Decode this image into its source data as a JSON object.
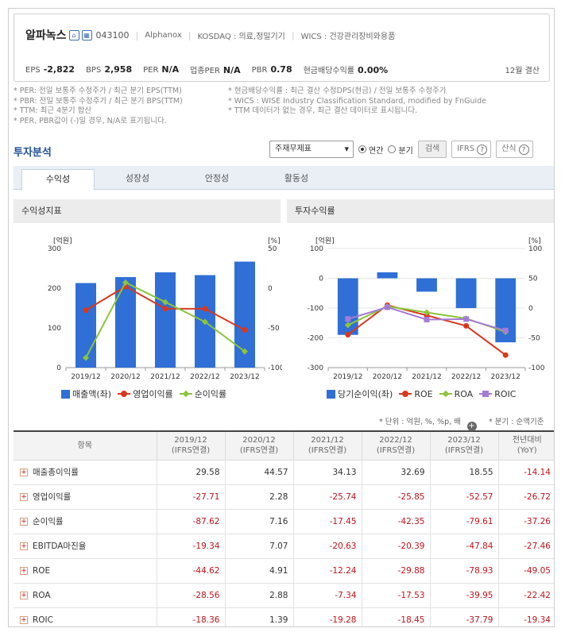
{
  "company": {
    "name": "알파녹스",
    "code": "043100",
    "eng": "Alphanox",
    "market": "KOSDAQ : 의료,정밀기기",
    "wics": "WICS : 건강관리장비와용품"
  },
  "metrics": [
    {
      "label": "EPS",
      "value": "-2,822"
    },
    {
      "label": "BPS",
      "value": "2,958"
    },
    {
      "label": "PER",
      "value": "N/A"
    },
    {
      "label": "업종PER",
      "value": "N/A"
    },
    {
      "label": "PBR",
      "value": "0.78"
    },
    {
      "label": "현금배당수익률",
      "value": "0.00%"
    }
  ],
  "settlement": "12월 결산",
  "notes_left": [
    "* PER: 전일 보통주 수정주가 / 최근 분기 EPS(TTM)",
    "* PBR: 전일 보통주 수정주가 / 최근 분기 BPS(TTM)",
    "* TTM: 최근 4분기 합산",
    "* PER, PBR값이 (-)일 경우, N/A로 표기됩니다."
  ],
  "notes_right": [
    "* 현금배당수익률 : 최근 결산 수정DPS(현금) / 전일 보통주 수정주가",
    "* WICS : WISE Industry Classification Standard, modified by FnGuide",
    "* TTM 데이터가 없는 경우, 최근 결산 데이터로 표시됩니다."
  ],
  "section_title": "투자분석",
  "controls": {
    "select": "주재무제표",
    "radio_year": "연간",
    "radio_quarter": "분기",
    "search": "검색",
    "ifrs": "IFRS",
    "sansik": "산식"
  },
  "tabs": [
    "수익성",
    "성장성",
    "안정성",
    "활동성"
  ],
  "chart1_title": "수익성지표",
  "chart2_title": "투자수익률",
  "unit_left": "[억원]",
  "unit_right": "[%]",
  "chart_data": [
    {
      "type": "bar",
      "title": "수익성지표",
      "categories": [
        "2019/12",
        "2020/12",
        "2021/12",
        "2022/12",
        "2023/12"
      ],
      "y_left": {
        "label": "[억원]",
        "ticks": [
          "300",
          "200",
          "100",
          "0"
        ],
        "range": [
          0,
          300
        ]
      },
      "y_right": {
        "label": "[%]",
        "ticks": [
          "50",
          "0",
          "-50",
          "-100"
        ],
        "range": [
          -100,
          50
        ]
      },
      "series": [
        {
          "name": "매출액(좌)",
          "kind": "bar",
          "axis": "left",
          "color": "#2f6fd6",
          "values": [
            213,
            228,
            240,
            233,
            267
          ]
        },
        {
          "name": "영업이익률",
          "kind": "line",
          "axis": "right",
          "color": "#d9381e",
          "values": [
            -27.71,
            2.28,
            -25.74,
            -25.85,
            -52.57
          ]
        },
        {
          "name": "순이익률",
          "kind": "line",
          "axis": "right",
          "color": "#8cc43c",
          "values": [
            -87.62,
            7.16,
            -17.45,
            -42.35,
            -79.61
          ]
        }
      ]
    },
    {
      "type": "bar",
      "title": "투자수익률",
      "categories": [
        "2019/12",
        "2020/12",
        "2021/12",
        "2022/12",
        "2023/12"
      ],
      "y_left": {
        "label": "[억원]",
        "ticks": [
          "100",
          "0",
          "-100",
          "-200",
          "-300"
        ],
        "range": [
          -300,
          100
        ]
      },
      "y_right": {
        "label": "[%]",
        "ticks": [
          "100",
          "50",
          "0",
          "-50",
          "-100"
        ],
        "range": [
          -100,
          100
        ]
      },
      "series": [
        {
          "name": "당기순이익(좌)",
          "kind": "bar",
          "axis": "left",
          "color": "#2f6fd6",
          "values": [
            -190,
            20,
            -45,
            -100,
            -215
          ]
        },
        {
          "name": "ROE",
          "kind": "line",
          "axis": "right",
          "color": "#d9381e",
          "values": [
            -44.62,
            4.91,
            -12.24,
            -29.88,
            -78.93
          ]
        },
        {
          "name": "ROA",
          "kind": "line",
          "axis": "right",
          "color": "#8cc43c",
          "values": [
            -28.56,
            2.88,
            -7.34,
            -17.53,
            -39.95
          ]
        },
        {
          "name": "ROIC",
          "kind": "line",
          "axis": "right",
          "color": "#a57bd8",
          "values": [
            -18.36,
            1.39,
            -19.28,
            -18.45,
            -37.79
          ]
        }
      ]
    }
  ],
  "unit_note": "* 단위 : 억원, %, %p, 배",
  "quarter_note": "* 분기 : 순액기준",
  "table": {
    "headers": [
      "항목",
      "2019/12",
      "2020/12",
      "2021/12",
      "2022/12",
      "2023/12",
      "전년대비"
    ],
    "subheaders": [
      "",
      "(IFRS연결)",
      "(IFRS연결)",
      "(IFRS연결)",
      "(IFRS연결)",
      "(IFRS연결)",
      "(YoY)"
    ],
    "rows": [
      {
        "label": "매출총이익률",
        "values": [
          "29.58",
          "44.57",
          "34.13",
          "32.69",
          "18.55",
          "-14.14"
        ]
      },
      {
        "label": "영업이익률",
        "values": [
          "-27.71",
          "2.28",
          "-25.74",
          "-25.85",
          "-52.57",
          "-26.72"
        ]
      },
      {
        "label": "순이익률",
        "values": [
          "-87.62",
          "7.16",
          "-17.45",
          "-42.35",
          "-79.61",
          "-37.26"
        ]
      },
      {
        "label": "EBITDA마진율",
        "values": [
          "-19.34",
          "7.07",
          "-20.63",
          "-20.39",
          "-47.84",
          "-27.46"
        ]
      },
      {
        "label": "ROE",
        "values": [
          "-44.62",
          "4.91",
          "-12.24",
          "-29.88",
          "-78.93",
          "-49.05"
        ]
      },
      {
        "label": "ROA",
        "values": [
          "-28.56",
          "2.88",
          "-7.34",
          "-17.53",
          "-39.95",
          "-22.42"
        ]
      },
      {
        "label": "ROIC",
        "values": [
          "-18.36",
          "1.39",
          "-19.28",
          "-18.45",
          "-37.79",
          "-19.34"
        ]
      }
    ]
  }
}
